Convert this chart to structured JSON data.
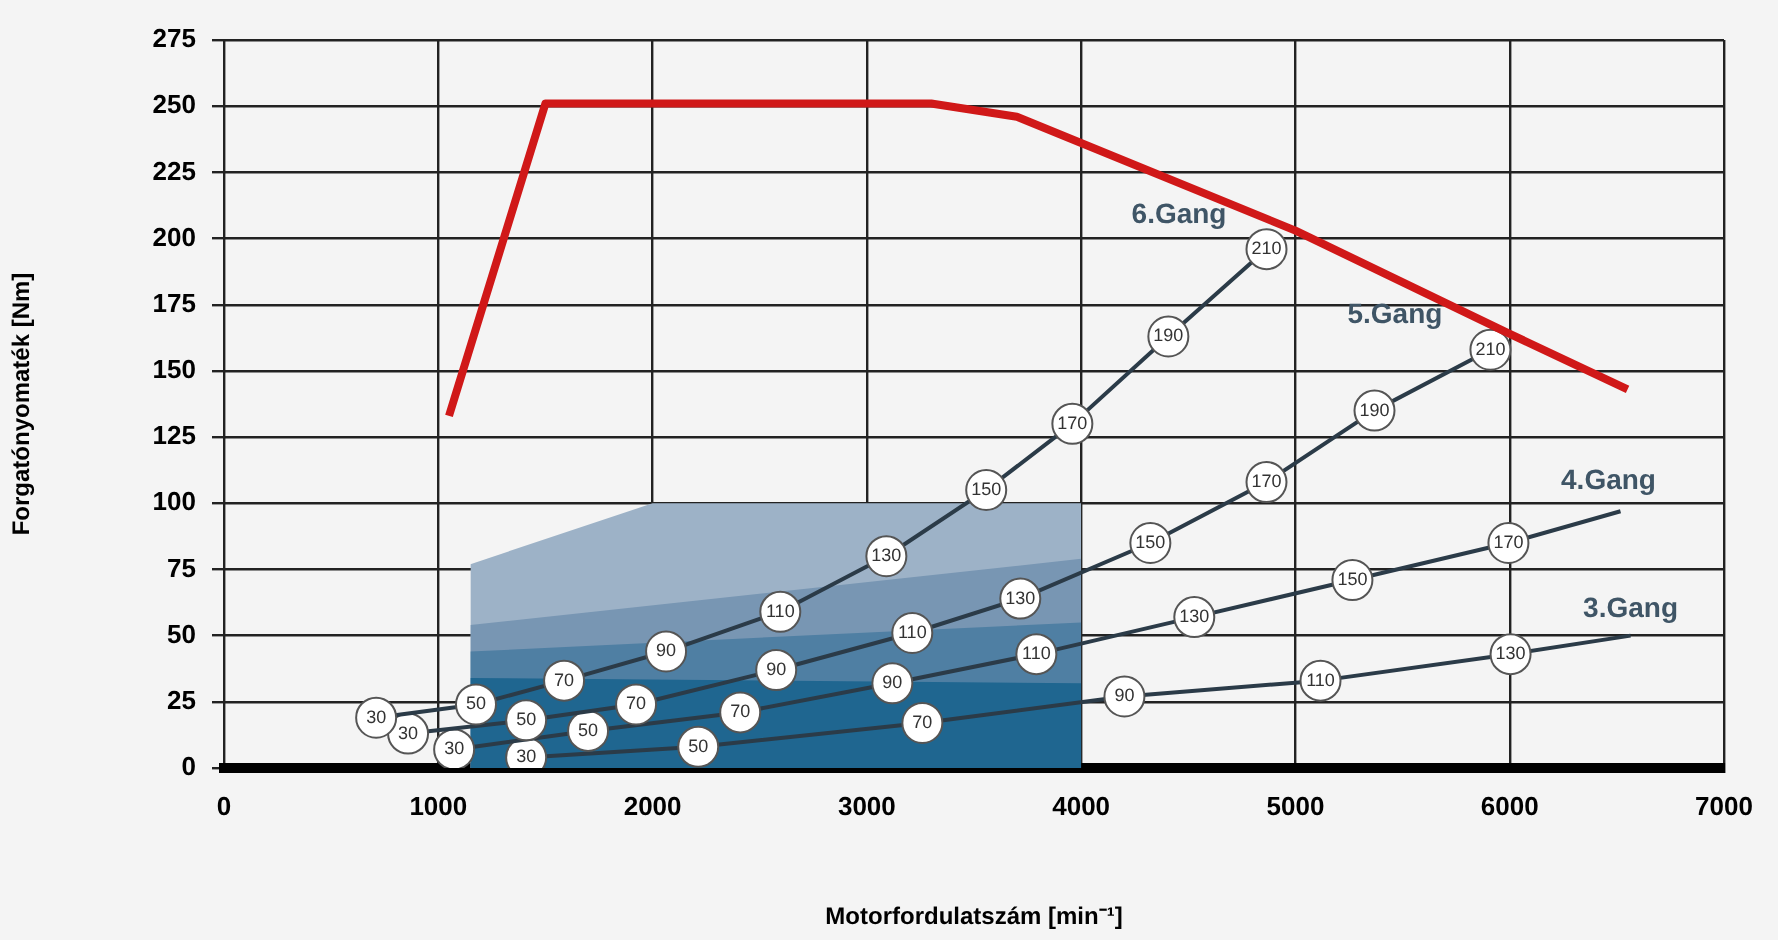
{
  "chart_data": {
    "type": "line",
    "xlabel": "Motorfordulatszám [min⁻¹]",
    "ylabel": "Forgatónyomaték [Nm]",
    "xlim": [
      0,
      7000
    ],
    "xticks": [
      0,
      1000,
      2000,
      3000,
      4000,
      5000,
      6000,
      7000
    ],
    "ylim": [
      0,
      275
    ],
    "yticks": [
      0,
      25,
      50,
      75,
      100,
      125,
      150,
      175,
      200,
      225,
      250,
      275
    ],
    "grid": true,
    "legend": false,
    "marker": "circle",
    "series": [
      {
        "type": "area",
        "color": "#9db2c7",
        "marker": "none",
        "x": [
          1150,
          2000,
          4000
        ],
        "values": [
          77,
          100,
          100
        ]
      },
      {
        "type": "area",
        "color": "#7896b3",
        "marker": "none",
        "x": [
          1150,
          4000
        ],
        "values": [
          54,
          79
        ]
      },
      {
        "type": "area",
        "color": "#4f7fa3",
        "marker": "none",
        "x": [
          1150,
          4000
        ],
        "values": [
          44,
          55
        ]
      },
      {
        "type": "area",
        "color": "#1f6690",
        "marker": "none",
        "x": [
          1150,
          4000
        ],
        "values": [
          34,
          32
        ]
      },
      {
        "name": "3.Gang",
        "color": "#2b3b48",
        "x": [
          1410,
          2213,
          3259,
          4202,
          5117,
          6004,
          6564
        ],
        "values": [
          4,
          8,
          17,
          27,
          33,
          43,
          50
        ]
      },
      {
        "name": "4.Gang",
        "color": "#2b3b48",
        "x": [
          1074,
          1699,
          2409,
          3119,
          3791,
          4528,
          5266,
          5994,
          6517
        ],
        "values": [
          7,
          14,
          21,
          32,
          43,
          57,
          71,
          85,
          97
        ]
      },
      {
        "name": "5.Gang",
        "color": "#2b3b48",
        "x": [
          859,
          1410,
          1923,
          2577,
          3212,
          3716,
          4323,
          4865,
          5369,
          5910
        ],
        "values": [
          13,
          18,
          24,
          37,
          51,
          64,
          85,
          108,
          135,
          158
        ]
      },
      {
        "name": "6.Gang",
        "color": "#2b3b48",
        "x": [
          710,
          1176,
          1587,
          2063,
          2596,
          3091,
          3557,
          3959,
          4407,
          4865
        ],
        "values": [
          19,
          24,
          33,
          44,
          59,
          80,
          105,
          130,
          163,
          196
        ]
      },
      {
        "color": "#d01818",
        "marker": "none",
        "x": [
          1050,
          1500,
          3300,
          3700,
          5000,
          6000,
          6550
        ],
        "values": [
          133,
          251,
          251,
          246,
          203,
          164,
          143
        ]
      }
    ],
    "annotations": [
      {
        "text": "30",
        "x": 1410,
        "y": 4
      },
      {
        "text": "50",
        "x": 2213,
        "y": 8
      },
      {
        "text": "70",
        "x": 3259,
        "y": 17
      },
      {
        "text": "90",
        "x": 4202,
        "y": 27
      },
      {
        "text": "110",
        "x": 5117,
        "y": 33
      },
      {
        "text": "130",
        "x": 6004,
        "y": 43
      },
      {
        "text": "30",
        "x": 1074,
        "y": 7
      },
      {
        "text": "50",
        "x": 1699,
        "y": 14
      },
      {
        "text": "70",
        "x": 2409,
        "y": 21
      },
      {
        "text": "90",
        "x": 3119,
        "y": 32
      },
      {
        "text": "110",
        "x": 3791,
        "y": 43
      },
      {
        "text": "130",
        "x": 4528,
        "y": 57
      },
      {
        "text": "150",
        "x": 5266,
        "y": 71
      },
      {
        "text": "170",
        "x": 5994,
        "y": 85
      },
      {
        "text": "30",
        "x": 859,
        "y": 13
      },
      {
        "text": "50",
        "x": 1410,
        "y": 18
      },
      {
        "text": "70",
        "x": 1923,
        "y": 24
      },
      {
        "text": "90",
        "x": 2577,
        "y": 37
      },
      {
        "text": "110",
        "x": 3212,
        "y": 51
      },
      {
        "text": "130",
        "x": 3716,
        "y": 64
      },
      {
        "text": "150",
        "x": 4323,
        "y": 85
      },
      {
        "text": "170",
        "x": 4865,
        "y": 108
      },
      {
        "text": "190",
        "x": 5369,
        "y": 135
      },
      {
        "text": "210",
        "x": 5910,
        "y": 158
      },
      {
        "text": "30",
        "x": 710,
        "y": 19
      },
      {
        "text": "50",
        "x": 1176,
        "y": 24
      },
      {
        "text": "70",
        "x": 1587,
        "y": 33
      },
      {
        "text": "90",
        "x": 2063,
        "y": 44
      },
      {
        "text": "110",
        "x": 2596,
        "y": 59
      },
      {
        "text": "130",
        "x": 3091,
        "y": 80
      },
      {
        "text": "150",
        "x": 3557,
        "y": 105
      },
      {
        "text": "170",
        "x": 3959,
        "y": 130
      },
      {
        "text": "190",
        "x": 4407,
        "y": 163
      },
      {
        "text": "210",
        "x": 4865,
        "y": 196
      }
    ]
  }
}
